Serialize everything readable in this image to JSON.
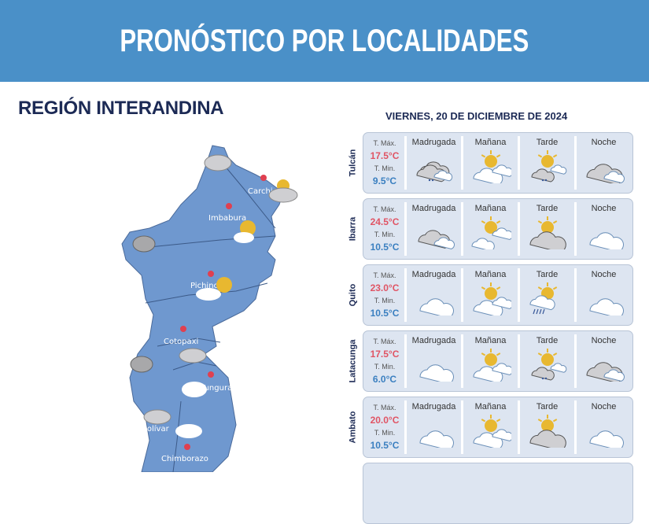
{
  "header": {
    "title": "PRONÓSTICO POR LOCALIDADES"
  },
  "region": {
    "title": "REGIÓN INTERANDINA"
  },
  "date": "VIERNES, 20 DE DICIEMBRE DE 2024",
  "labels": {
    "tmax": "T. Máx.",
    "tmin": "T. Min."
  },
  "periods": [
    "Madrugada",
    "Mañana",
    "Tarde",
    "Noche"
  ],
  "colors": {
    "banner": "#4a90c8",
    "title": "#1c2a55",
    "tmax": "#e05464",
    "tmin": "#3a7fc0",
    "map": "#6f98cf"
  },
  "map": {
    "provinces": [
      "Carchi",
      "Imbabura",
      "Pichincha",
      "Cotopaxi",
      "Tungurahua",
      "Bolívar",
      "Chimborazo"
    ]
  },
  "cities": [
    {
      "name": "Tulcán",
      "tmax": "17.5°C",
      "tmin": "9.5°C",
      "icons": [
        "cloudy-drizzle",
        "partly-sunny",
        "sun-cloud-drizzle",
        "cloudy-night"
      ]
    },
    {
      "name": "Ibarra",
      "tmax": "24.5°C",
      "tmin": "10.5°C",
      "icons": [
        "night-cloudy",
        "sunny-clouds",
        "cloudy-sun",
        "night-partly-cloudy"
      ]
    },
    {
      "name": "Quito",
      "tmax": "23.0°C",
      "tmin": "10.5°C",
      "icons": [
        "night-partly-cloudy",
        "partly-sunny",
        "sun-rain",
        "night-partly-cloudy"
      ]
    },
    {
      "name": "Latacunga",
      "tmax": "17.5°C",
      "tmin": "6.0°C",
      "icons": [
        "night-partly-cloudy",
        "partly-sunny",
        "sun-cloud-drizzle",
        "cloudy-night"
      ]
    },
    {
      "name": "Ambato",
      "tmax": "20.0°C",
      "tmin": "10.5°C",
      "icons": [
        "night-partly-cloudy",
        "partly-sunny",
        "cloudy-sun",
        "night-partly-cloudy"
      ]
    }
  ]
}
